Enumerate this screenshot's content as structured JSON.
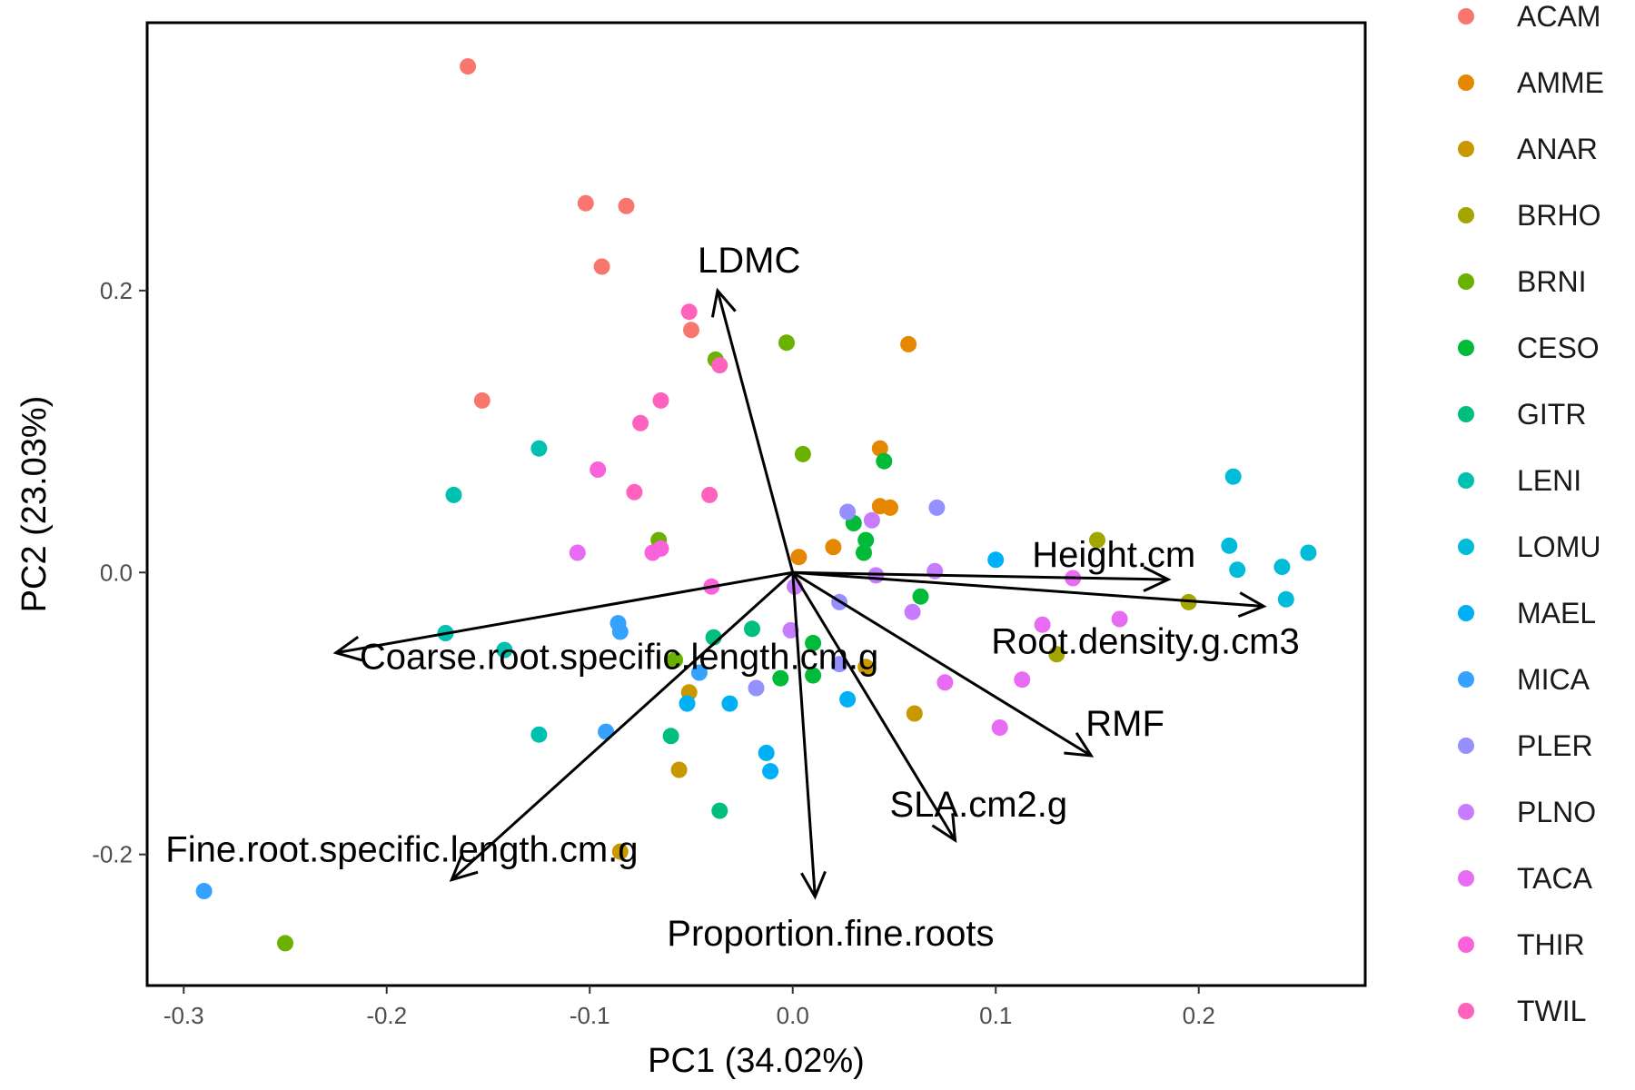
{
  "chart_data": {
    "type": "scatter",
    "title": "",
    "xlabel": "PC1 (34.02%)",
    "ylabel": "PC2 (23.03%)",
    "xlim": [
      -0.318,
      0.282
    ],
    "ylim": [
      -0.293,
      0.39
    ],
    "xticks": [
      -0.3,
      -0.2,
      -0.1,
      0.0,
      0.1,
      0.2
    ],
    "xtick_labels": [
      "-0.3",
      "-0.2",
      "-0.1",
      "0.0",
      "0.1",
      "0.2"
    ],
    "yticks": [
      -0.2,
      0.0,
      0.2
    ],
    "ytick_labels": [
      "-0.2",
      "0.0",
      "0.2"
    ],
    "grid": false,
    "legend_position": "right",
    "series": [
      {
        "name": "ACAM",
        "color": "#F8766D",
        "points": [
          [
            -0.16,
            0.359
          ],
          [
            -0.102,
            0.262
          ],
          [
            -0.082,
            0.26
          ],
          [
            -0.094,
            0.217
          ],
          [
            -0.05,
            0.172
          ],
          [
            -0.153,
            0.122
          ]
        ]
      },
      {
        "name": "AMME",
        "color": "#E58700",
        "points": [
          [
            0.057,
            0.162
          ],
          [
            0.043,
            0.088
          ],
          [
            0.043,
            0.047
          ],
          [
            0.048,
            0.046
          ],
          [
            0.02,
            0.018
          ],
          [
            0.003,
            0.011
          ]
        ]
      },
      {
        "name": "ANAR",
        "color": "#C99800",
        "points": [
          [
            0.036,
            -0.067
          ],
          [
            -0.051,
            -0.085
          ],
          [
            0.06,
            -0.1
          ],
          [
            -0.056,
            -0.14
          ],
          [
            -0.085,
            -0.198
          ]
        ]
      },
      {
        "name": "BRHO",
        "color": "#A3A500",
        "points": [
          [
            0.15,
            0.023
          ],
          [
            0.195,
            -0.021
          ],
          [
            0.13,
            -0.058
          ]
        ]
      },
      {
        "name": "BRNI",
        "color": "#6BB100",
        "points": [
          [
            -0.003,
            0.163
          ],
          [
            -0.038,
            0.151
          ],
          [
            0.005,
            0.084
          ],
          [
            -0.066,
            0.023
          ],
          [
            -0.058,
            -0.062
          ],
          [
            -0.25,
            -0.263
          ]
        ]
      },
      {
        "name": "CESO",
        "color": "#00BA38",
        "points": [
          [
            0.045,
            0.079
          ],
          [
            0.03,
            0.035
          ],
          [
            0.036,
            0.023
          ],
          [
            0.035,
            0.014
          ],
          [
            0.063,
            -0.017
          ],
          [
            0.01,
            -0.05
          ],
          [
            0.01,
            -0.073
          ],
          [
            -0.006,
            -0.075
          ]
        ]
      },
      {
        "name": "GITR",
        "color": "#00BF7D",
        "points": [
          [
            -0.02,
            -0.04
          ],
          [
            -0.039,
            -0.046
          ],
          [
            -0.06,
            -0.116
          ],
          [
            -0.036,
            -0.169
          ]
        ]
      },
      {
        "name": "LENI",
        "color": "#00C0AF",
        "points": [
          [
            -0.125,
            0.088
          ],
          [
            -0.167,
            0.055
          ],
          [
            -0.171,
            -0.043
          ],
          [
            -0.142,
            -0.055
          ],
          [
            -0.125,
            -0.115
          ]
        ]
      },
      {
        "name": "LOMU",
        "color": "#00BCD8",
        "points": [
          [
            0.217,
            0.068
          ],
          [
            0.215,
            0.019
          ],
          [
            0.254,
            0.014
          ],
          [
            0.219,
            0.002
          ],
          [
            0.241,
            0.004
          ],
          [
            0.243,
            -0.019
          ]
        ]
      },
      {
        "name": "MAEL",
        "color": "#00B0F6",
        "points": [
          [
            0.1,
            0.009
          ],
          [
            -0.052,
            -0.093
          ],
          [
            -0.031,
            -0.093
          ],
          [
            0.027,
            -0.09
          ],
          [
            -0.013,
            -0.128
          ],
          [
            -0.011,
            -0.141
          ]
        ]
      },
      {
        "name": "MICA",
        "color": "#35A2FF",
        "points": [
          [
            -0.086,
            -0.036
          ],
          [
            -0.085,
            -0.042
          ],
          [
            -0.046,
            -0.071
          ],
          [
            -0.092,
            -0.113
          ],
          [
            -0.29,
            -0.226
          ]
        ]
      },
      {
        "name": "PLER",
        "color": "#9590FF",
        "points": [
          [
            0.071,
            0.046
          ],
          [
            0.027,
            0.043
          ],
          [
            0.023,
            -0.021
          ],
          [
            0.023,
            -0.065
          ],
          [
            -0.018,
            -0.082
          ]
        ]
      },
      {
        "name": "PLNO",
        "color": "#C77CFF",
        "points": [
          [
            0.039,
            0.037
          ],
          [
            0.07,
            0.001
          ],
          [
            0.041,
            -0.002
          ],
          [
            0.001,
            -0.01
          ],
          [
            0.059,
            -0.028
          ],
          [
            -0.001,
            -0.041
          ]
        ]
      },
      {
        "name": "TACA",
        "color": "#E76BF3",
        "points": [
          [
            -0.106,
            0.014
          ],
          [
            0.138,
            -0.004
          ],
          [
            0.123,
            -0.037
          ],
          [
            0.161,
            -0.033
          ],
          [
            0.113,
            -0.076
          ],
          [
            0.075,
            -0.078
          ],
          [
            0.102,
            -0.11
          ]
        ]
      },
      {
        "name": "THIR",
        "color": "#FA62DB",
        "points": [
          [
            -0.096,
            0.073
          ],
          [
            -0.069,
            0.014
          ],
          [
            -0.065,
            0.017
          ],
          [
            -0.04,
            -0.01
          ]
        ]
      },
      {
        "name": "TWIL",
        "color": "#FF62BC",
        "points": [
          [
            -0.051,
            0.185
          ],
          [
            -0.036,
            0.147
          ],
          [
            -0.065,
            0.122
          ],
          [
            -0.075,
            0.106
          ],
          [
            -0.078,
            0.057
          ],
          [
            -0.041,
            0.055
          ]
        ]
      }
    ],
    "loadings": [
      {
        "name": "LDMC",
        "x": -0.037,
        "y": 0.2
      },
      {
        "name": "Height.cm",
        "x": 0.185,
        "y": -0.005
      },
      {
        "name": "Root.density.g.cm3",
        "x": 0.232,
        "y": -0.024
      },
      {
        "name": "Coarse.root.specific.length.cm.g",
        "x": -0.225,
        "y": -0.057
      },
      {
        "name": "RMF",
        "x": 0.147,
        "y": -0.13
      },
      {
        "name": "SLA.cm2.g",
        "x": 0.08,
        "y": -0.19
      },
      {
        "name": "Fine.root.specific.length.cm.g",
        "x": -0.168,
        "y": -0.218
      },
      {
        "name": "Proportion.fine.roots",
        "x": 0.011,
        "y": -0.23
      }
    ]
  }
}
